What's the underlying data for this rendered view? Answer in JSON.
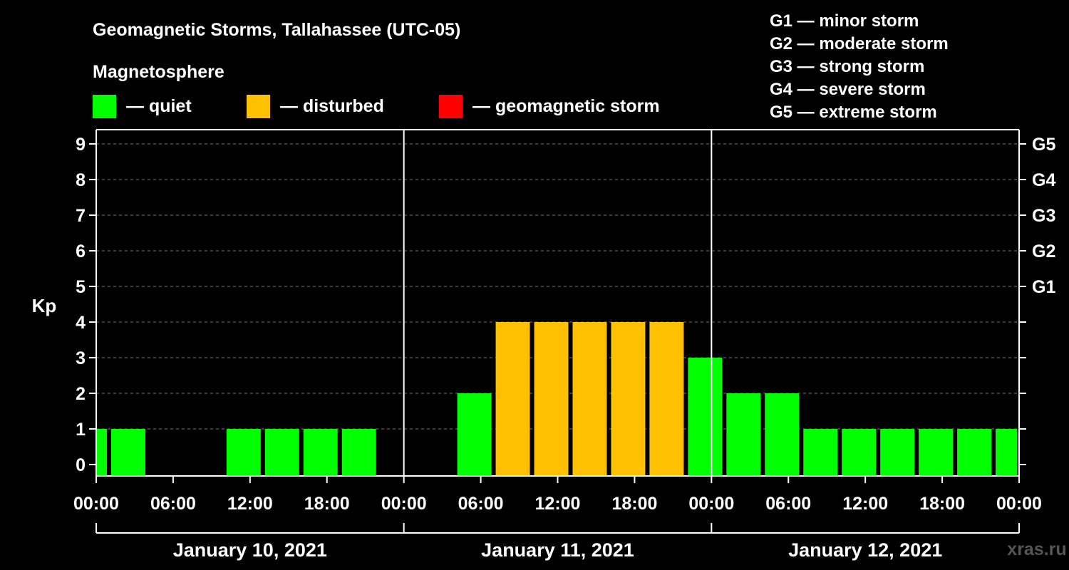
{
  "title": "Geomagnetic Storms, Tallahassee (UTC-05)",
  "legend": {
    "heading": "Magnetosphere",
    "items": [
      {
        "label": "— quiet",
        "color": "#00ff00"
      },
      {
        "label": "— disturbed",
        "color": "#ffc000"
      },
      {
        "label": "— geomagnetic storm",
        "color": "#ff0000"
      }
    ],
    "storm_scale": [
      "G1 — minor storm",
      "G2 — moderate storm",
      "G3 — strong storm",
      "G4 — severe storm",
      "G5 — extreme storm"
    ]
  },
  "watermark": "xras.ru",
  "chart_data": {
    "type": "bar",
    "ylabel": "Kp",
    "ylim": [
      0,
      9
    ],
    "yticks": [
      "0",
      "1",
      "2",
      "3",
      "4",
      "5",
      "6",
      "7",
      "8",
      "9"
    ],
    "right_axis_labels": [
      {
        "kp": 5,
        "label": "G1"
      },
      {
        "kp": 6,
        "label": "G2"
      },
      {
        "kp": 7,
        "label": "G3"
      },
      {
        "kp": 8,
        "label": "G4"
      },
      {
        "kp": 9,
        "label": "G5"
      }
    ],
    "xlim_hours": [
      0,
      72
    ],
    "xticks": [
      "00:00",
      "06:00",
      "12:00",
      "18:00",
      "00:00",
      "06:00",
      "12:00",
      "18:00",
      "00:00",
      "06:00",
      "12:00",
      "18:00",
      "00:00"
    ],
    "days": [
      "January 10, 2021",
      "January 11, 2021",
      "January 12, 2021"
    ],
    "grid": "horizontal dashed",
    "colors": {
      "quiet": "#00ff00",
      "disturbed": "#ffc000",
      "storm": "#ff0000"
    },
    "bars": [
      {
        "start_hour": 0,
        "end_hour": 1,
        "kp": 1,
        "status": "quiet"
      },
      {
        "start_hour": 1,
        "end_hour": 4,
        "kp": 1,
        "status": "quiet"
      },
      {
        "start_hour": 4,
        "end_hour": 7,
        "kp": 0,
        "status": "quiet"
      },
      {
        "start_hour": 7,
        "end_hour": 10,
        "kp": 0,
        "status": "quiet"
      },
      {
        "start_hour": 10,
        "end_hour": 13,
        "kp": 1,
        "status": "quiet"
      },
      {
        "start_hour": 13,
        "end_hour": 16,
        "kp": 1,
        "status": "quiet"
      },
      {
        "start_hour": 16,
        "end_hour": 19,
        "kp": 1,
        "status": "quiet"
      },
      {
        "start_hour": 19,
        "end_hour": 22,
        "kp": 1,
        "status": "quiet"
      },
      {
        "start_hour": 22,
        "end_hour": 25,
        "kp": 0,
        "status": "quiet"
      },
      {
        "start_hour": 25,
        "end_hour": 28,
        "kp": 0,
        "status": "quiet"
      },
      {
        "start_hour": 28,
        "end_hour": 31,
        "kp": 2,
        "status": "quiet"
      },
      {
        "start_hour": 31,
        "end_hour": 34,
        "kp": 4,
        "status": "disturbed"
      },
      {
        "start_hour": 34,
        "end_hour": 37,
        "kp": 4,
        "status": "disturbed"
      },
      {
        "start_hour": 37,
        "end_hour": 40,
        "kp": 4,
        "status": "disturbed"
      },
      {
        "start_hour": 40,
        "end_hour": 43,
        "kp": 4,
        "status": "disturbed"
      },
      {
        "start_hour": 43,
        "end_hour": 46,
        "kp": 4,
        "status": "disturbed"
      },
      {
        "start_hour": 46,
        "end_hour": 49,
        "kp": 3,
        "status": "quiet"
      },
      {
        "start_hour": 49,
        "end_hour": 52,
        "kp": 2,
        "status": "quiet"
      },
      {
        "start_hour": 52,
        "end_hour": 55,
        "kp": 2,
        "status": "quiet"
      },
      {
        "start_hour": 55,
        "end_hour": 58,
        "kp": 1,
        "status": "quiet"
      },
      {
        "start_hour": 58,
        "end_hour": 61,
        "kp": 1,
        "status": "quiet"
      },
      {
        "start_hour": 61,
        "end_hour": 64,
        "kp": 1,
        "status": "quiet"
      },
      {
        "start_hour": 64,
        "end_hour": 67,
        "kp": 1,
        "status": "quiet"
      },
      {
        "start_hour": 67,
        "end_hour": 70,
        "kp": 1,
        "status": "quiet"
      },
      {
        "start_hour": 70,
        "end_hour": 72,
        "kp": 1,
        "status": "quiet"
      }
    ]
  }
}
